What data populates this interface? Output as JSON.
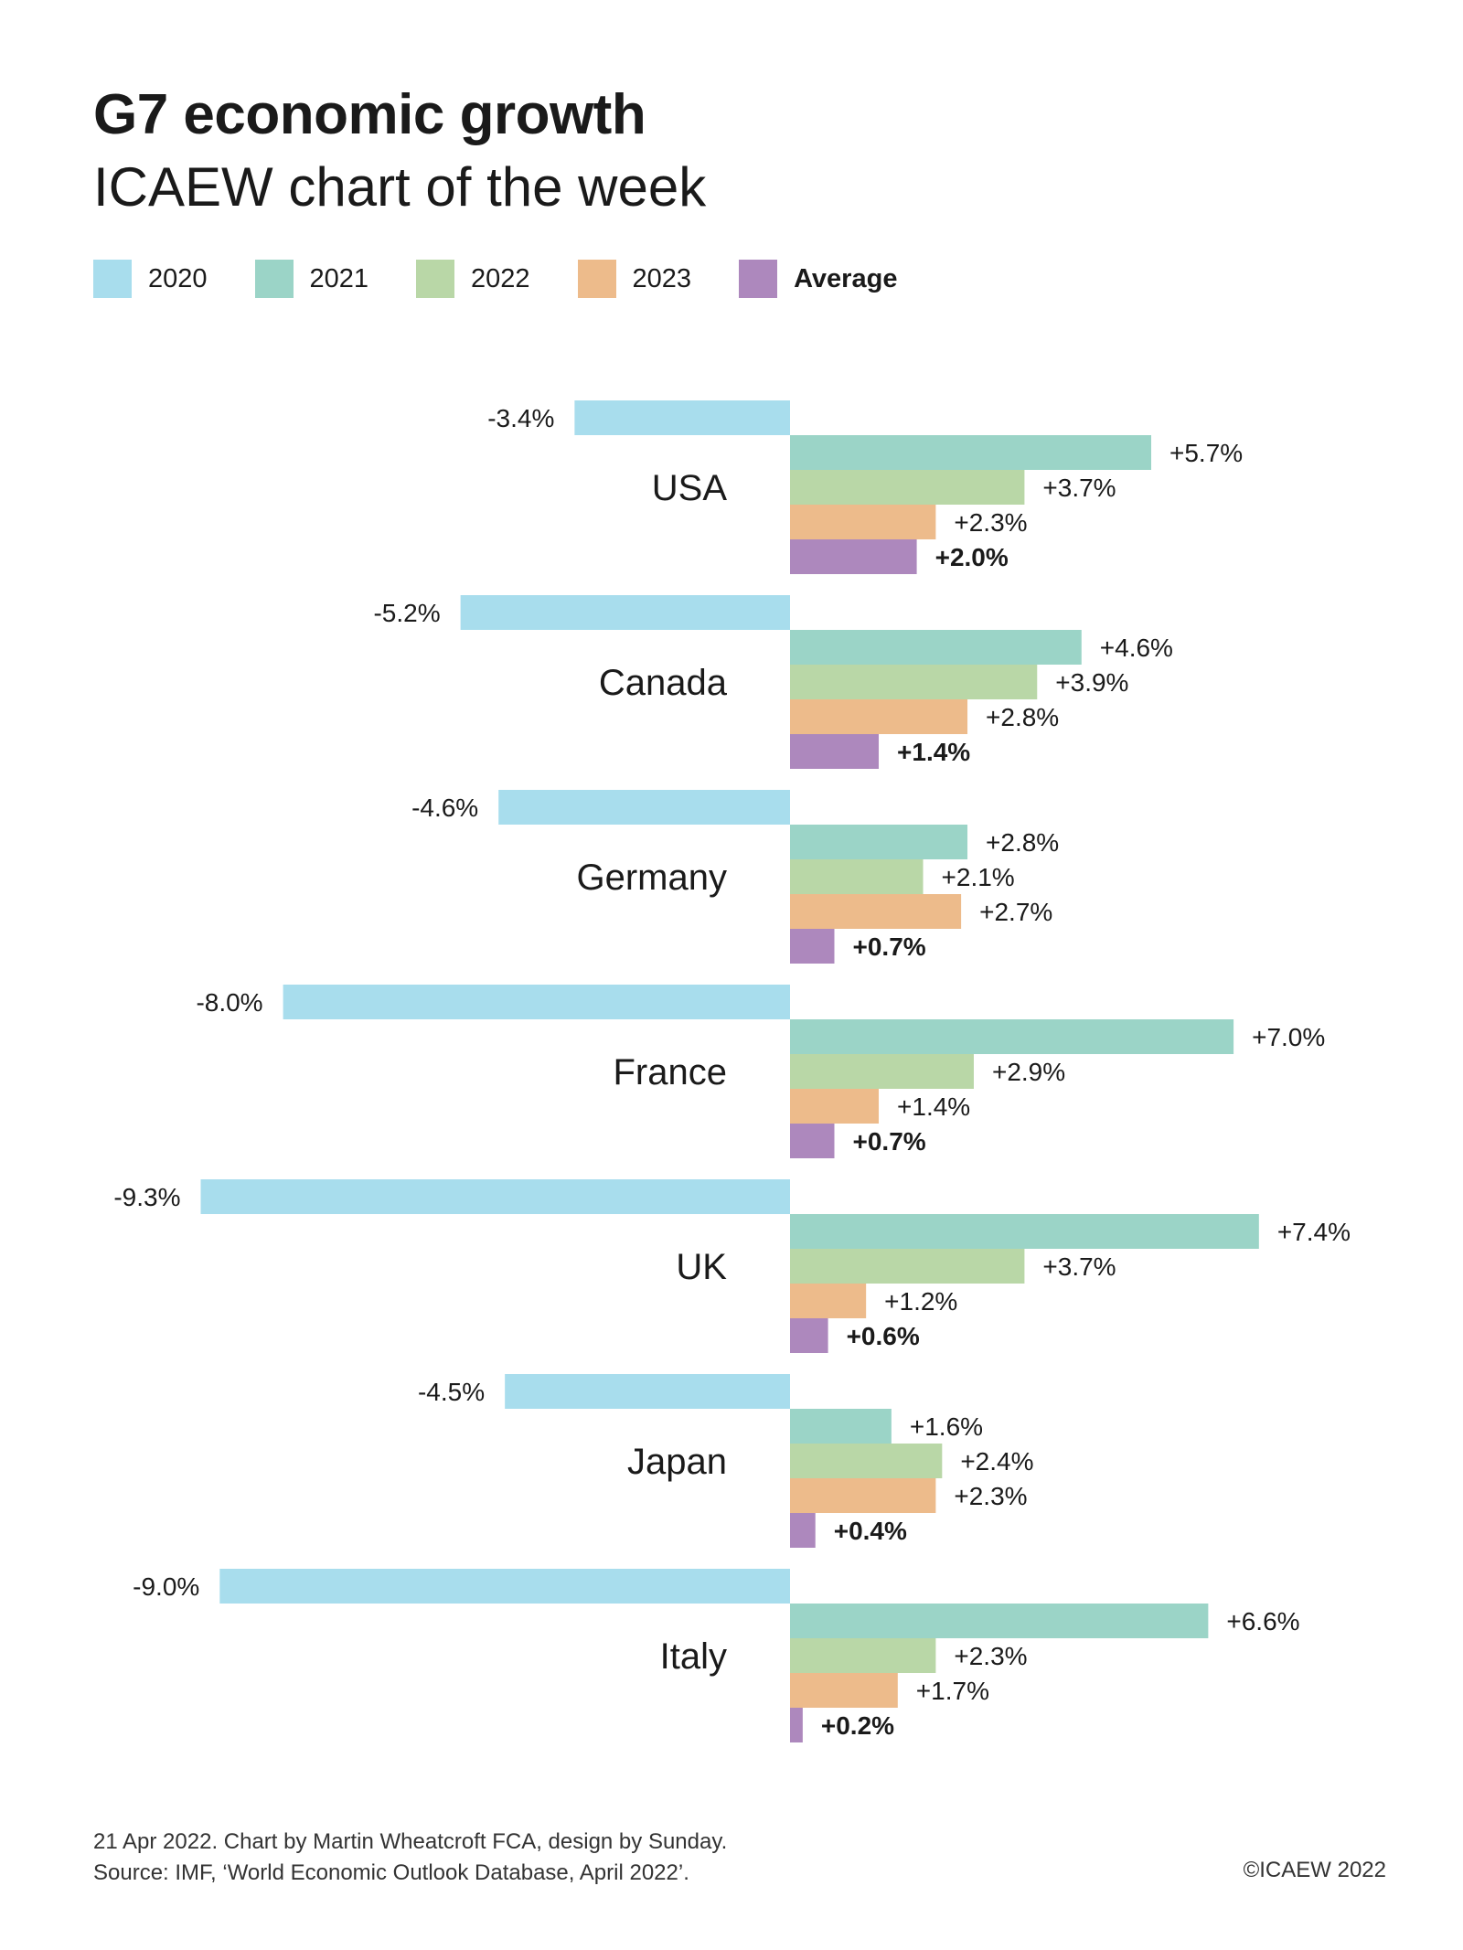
{
  "header": {
    "title": "G7 economic growth",
    "subtitle": "ICAEW chart of the week"
  },
  "legend": [
    {
      "label": "2020",
      "color": "#a8dded"
    },
    {
      "label": "2021",
      "color": "#9bd4c7"
    },
    {
      "label": "2022",
      "color": "#b9d7a7"
    },
    {
      "label": "2023",
      "color": "#edbb8b"
    },
    {
      "label": "Average",
      "color": "#ad88bd"
    }
  ],
  "chart_data": {
    "type": "bar",
    "orientation": "horizontal",
    "categories": [
      "USA",
      "Canada",
      "Germany",
      "France",
      "UK",
      "Japan",
      "Italy"
    ],
    "series": [
      {
        "name": "2020",
        "color": "#a8dded",
        "values": [
          -3.4,
          -5.2,
          -4.6,
          -8.0,
          -9.3,
          -4.5,
          -9.0
        ],
        "labels": [
          "-3.4%",
          "-5.2%",
          "-4.6%",
          "-8.0%",
          "-9.3%",
          "-4.5%",
          "-9.0%"
        ]
      },
      {
        "name": "2021",
        "color": "#9bd4c7",
        "values": [
          5.7,
          4.6,
          2.8,
          7.0,
          7.4,
          1.6,
          6.6
        ],
        "labels": [
          "+5.7%",
          "+4.6%",
          "+2.8%",
          "+7.0%",
          "+7.4%",
          "+1.6%",
          "+6.6%"
        ]
      },
      {
        "name": "2022",
        "color": "#b9d7a7",
        "values": [
          3.7,
          3.9,
          2.1,
          2.9,
          3.7,
          2.4,
          2.3
        ],
        "labels": [
          "+3.7%",
          "+3.9%",
          "+2.1%",
          "+2.9%",
          "+3.7%",
          "+2.4%",
          "+2.3%"
        ]
      },
      {
        "name": "2023",
        "color": "#edbb8b",
        "values": [
          2.3,
          2.8,
          2.7,
          1.4,
          1.2,
          2.3,
          1.7
        ],
        "labels": [
          "+2.3%",
          "+2.8%",
          "+2.7%",
          "+1.4%",
          "+1.2%",
          "+2.3%",
          "+1.7%"
        ]
      },
      {
        "name": "Average",
        "color": "#ad88bd",
        "values": [
          2.0,
          1.4,
          0.7,
          0.7,
          0.6,
          0.4,
          0.2
        ],
        "labels": [
          "+2.0%",
          "+1.4%",
          "+0.7%",
          "+0.7%",
          "+0.6%",
          "+0.4%",
          "+0.2%"
        ]
      }
    ],
    "grid": false
  },
  "footer": {
    "line1": "21 Apr 2022.   Chart by Martin Wheatcroft FCA, design by Sunday.",
    "line2": "Source: IMF, ‘World Economic Outlook Database, April 2022’.",
    "copyright": "©ICAEW 2022"
  }
}
